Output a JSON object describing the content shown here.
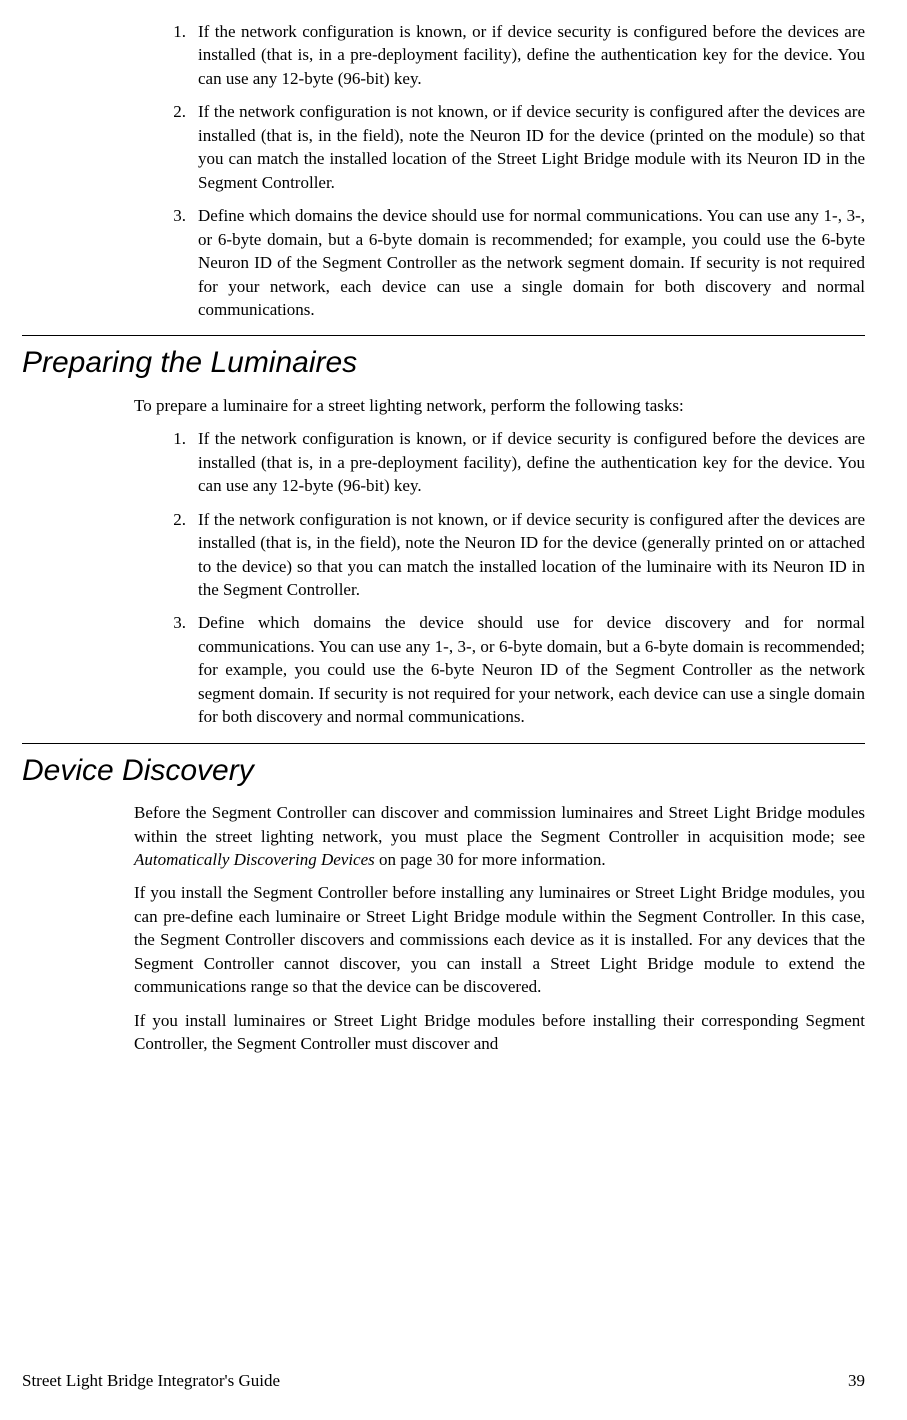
{
  "list1": {
    "items": [
      {
        "num": "1.",
        "text": "If the network configuration is known, or if device security is configured before the devices are installed (that is, in a pre-deployment facility), define the authentication key for the device.  You can use any 12-byte (96-bit) key."
      },
      {
        "num": "2.",
        "text": "If the network configuration is not known, or if device security is configured after the devices are installed (that is, in the field), note the Neuron ID for the device (printed on the module) so that you can match the installed location of the Street Light Bridge module with its Neuron ID in the Segment Controller."
      },
      {
        "num": "3.",
        "text": "Define which domains the device should use for normal communications.  You can use any 1-, 3-, or 6-byte domain, but a 6-byte domain is recommended; for example, you could use the 6-byte Neuron ID of the Segment Controller as the network segment domain.  If security is not required for your network, each device can use a single domain for both discovery and normal communications."
      }
    ]
  },
  "section1": {
    "heading": "Preparing the Luminaires",
    "intro": "To prepare a luminaire for a street lighting network, perform the following tasks:"
  },
  "list2": {
    "items": [
      {
        "num": "1.",
        "text": "If the network configuration is known, or if device security is configured before the devices are installed (that is, in a pre-deployment facility), define the authentication key for the device.  You can use any 12-byte (96-bit) key."
      },
      {
        "num": "2.",
        "text": "If the network configuration is not known, or if device security is configured after the devices are installed (that is, in the field), note the Neuron ID for the device (generally printed on or attached to the device) so that you can match the installed location of the luminaire with its Neuron ID in the Segment Controller."
      },
      {
        "num": "3.",
        "text": "Define which domains the device should use for device discovery and for normal communications.  You can use any 1-, 3-, or 6-byte domain, but a 6-byte domain is recommended; for example, you could use the 6-byte Neuron ID of the Segment Controller as the network segment domain.  If security is not required for your network, each device can use a single domain for both discovery and normal communications."
      }
    ]
  },
  "section2": {
    "heading": "Device Discovery",
    "p1a": "Before the Segment Controller can discover and commission luminaires and Street Light Bridge modules within the street lighting network, you must place the Segment Controller in acquisition mode; see ",
    "p1b": "Automatically Discovering Devices",
    "p1c": " on page 30 for more information.",
    "p2": "If you install the Segment Controller before installing any luminaires or Street Light Bridge modules, you can pre-define each luminaire or Street Light Bridge module within the Segment Controller.  In this case, the Segment Controller discovers and commissions each device as it is installed.  For any devices that the Segment Controller cannot discover, you can install a Street Light Bridge module to extend the communications range so that the device can be discovered.",
    "p3": "If you install luminaires or Street Light Bridge modules before installing their corresponding Segment Controller, the Segment Controller must discover and"
  },
  "footer": {
    "title": "Street Light Bridge Integrator's Guide",
    "pagenum": "39"
  }
}
